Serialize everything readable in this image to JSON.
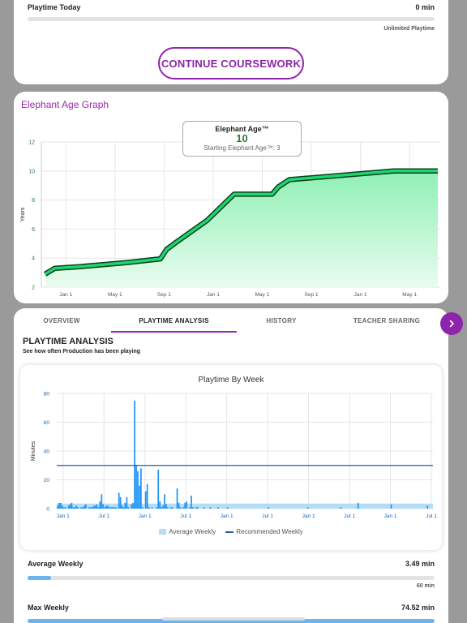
{
  "top": {
    "playtime_today_label": "Playtime Today",
    "playtime_today_value": "0 min",
    "playtime_today_progress": 0,
    "limit_text": "Unlimited Playtime",
    "continue_label": "CONTINUE COURSEWORK"
  },
  "elephant": {
    "title": "Elephant Age Graph",
    "tooltip_title": "Elephant Age™",
    "tooltip_value": "10",
    "tooltip_sub": "Starting Elephant Age™: 3"
  },
  "tabs": [
    "OVERVIEW",
    "PLAYTIME ANALYSIS",
    "HISTORY",
    "TEACHER SHARING"
  ],
  "active_tab": 1,
  "analysis": {
    "title": "PLAYTIME ANALYSIS",
    "subtitle": "See how often Production has been playing",
    "legend_average": "Average Weekly",
    "legend_recommended": "Recommended Weekly"
  },
  "stats": {
    "avg_label": "Average Weekly",
    "avg_value": "3.49 min",
    "avg_max": "60 min",
    "avg_progress": 0.058,
    "max_label": "Max Weekly",
    "max_value": "74.52 min",
    "max_progress": 1
  },
  "colors": {
    "accent": "#8e24aa",
    "elephant_line": "#1ed66f",
    "elephant_fill": "#8ff0b4",
    "bar": "#2196f3",
    "avg_band": "#b7dcf6",
    "recommended": "#2b5aa0"
  },
  "icons": {
    "next": "chevron-right-icon"
  },
  "chart_data": [
    {
      "type": "area",
      "title": "Elephant Age Graph",
      "ylabel": "Years",
      "ylim": [
        2,
        12
      ],
      "y_ticks": [
        2,
        4,
        6,
        8,
        10,
        12
      ],
      "x_tick_labels": [
        "Jan 1",
        "May 1",
        "Sep 1",
        "Jan 1",
        "May 1",
        "Sep 1",
        "Jan 1",
        "May 1"
      ],
      "x_range_months": [
        -2,
        30.5
      ],
      "grid": true,
      "series": [
        {
          "x_months": [
            -1.7,
            -1.3,
            -0.9,
            1,
            3,
            5,
            7.7,
            8.2,
            9,
            11.5,
            13.7,
            16.8,
            17.3,
            18.2,
            26.7,
            30.3
          ],
          "values": [
            2.9,
            3.1,
            3.3,
            3.4,
            3.55,
            3.7,
            3.95,
            4.6,
            5.1,
            6.6,
            8.4,
            8.4,
            8.9,
            9.4,
            10.0,
            10.0
          ]
        }
      ]
    },
    {
      "type": "bar",
      "title": "Playtime By Week",
      "ylabel": "Minutes",
      "ylim": [
        0,
        80
      ],
      "y_ticks": [
        0,
        20,
        40,
        60,
        80
      ],
      "x_tick_labels": [
        "Jan 1",
        "Jul 1",
        "Jan 1",
        "Jul 1",
        "Jan 1",
        "Jul 1",
        "Jan 1",
        "Jul 1",
        "Jan 1",
        "Jul 1"
      ],
      "weeks_per_tick": 26,
      "average_weekly": 3.49,
      "recommended_weekly": 30,
      "legend": [
        "Average Weekly",
        "Recommended Weekly"
      ],
      "weekly_minutes": [
        2,
        4,
        4,
        2,
        1,
        1,
        0,
        2,
        3,
        4,
        1,
        1,
        2,
        1,
        0,
        1,
        1,
        2,
        3,
        0,
        1,
        1,
        1,
        2,
        2,
        3,
        1,
        5,
        10,
        3,
        1,
        2,
        2,
        1,
        1,
        1,
        1,
        1,
        0,
        11,
        8,
        2,
        1,
        4,
        8,
        1,
        0,
        3,
        4,
        75,
        30,
        26,
        16,
        28,
        1,
        0,
        12,
        17,
        1,
        0,
        1,
        0,
        0,
        1,
        27,
        5,
        1,
        2,
        10,
        3,
        1,
        0,
        1,
        1,
        0,
        0,
        14,
        4,
        1,
        0,
        1,
        4,
        5,
        0,
        1,
        9,
        1,
        0,
        1,
        1,
        0,
        0,
        0,
        1,
        0,
        0,
        0,
        1,
        0,
        0,
        0,
        0,
        1,
        0,
        0,
        0,
        0,
        0,
        1,
        0,
        0,
        0,
        0,
        0,
        0,
        0,
        0,
        0,
        0,
        0,
        0,
        0,
        0,
        0,
        0,
        0,
        0,
        0,
        0,
        0,
        0,
        0,
        0,
        0,
        1,
        0,
        0,
        0,
        0,
        0,
        0,
        0,
        0,
        0,
        0,
        0,
        0,
        0,
        0,
        0,
        0,
        0,
        0,
        0,
        0,
        0,
        0,
        0,
        0,
        1,
        0,
        0,
        0,
        0,
        0,
        0,
        0,
        0,
        0,
        0,
        0,
        0,
        0,
        0,
        0,
        0,
        0,
        0,
        0,
        0,
        1,
        0,
        0,
        0,
        0,
        0,
        0,
        0,
        0,
        0,
        0,
        4,
        0,
        0,
        0,
        0,
        0,
        0,
        0,
        0,
        0,
        0,
        0,
        0,
        0,
        0,
        0,
        0,
        0,
        0,
        0,
        0,
        3,
        0,
        0,
        0,
        0,
        0,
        0,
        0,
        0,
        0,
        0,
        0,
        0,
        0,
        0,
        0,
        0,
        0,
        0,
        0,
        0,
        0,
        0,
        2,
        0,
        0,
        0
      ]
    }
  ]
}
